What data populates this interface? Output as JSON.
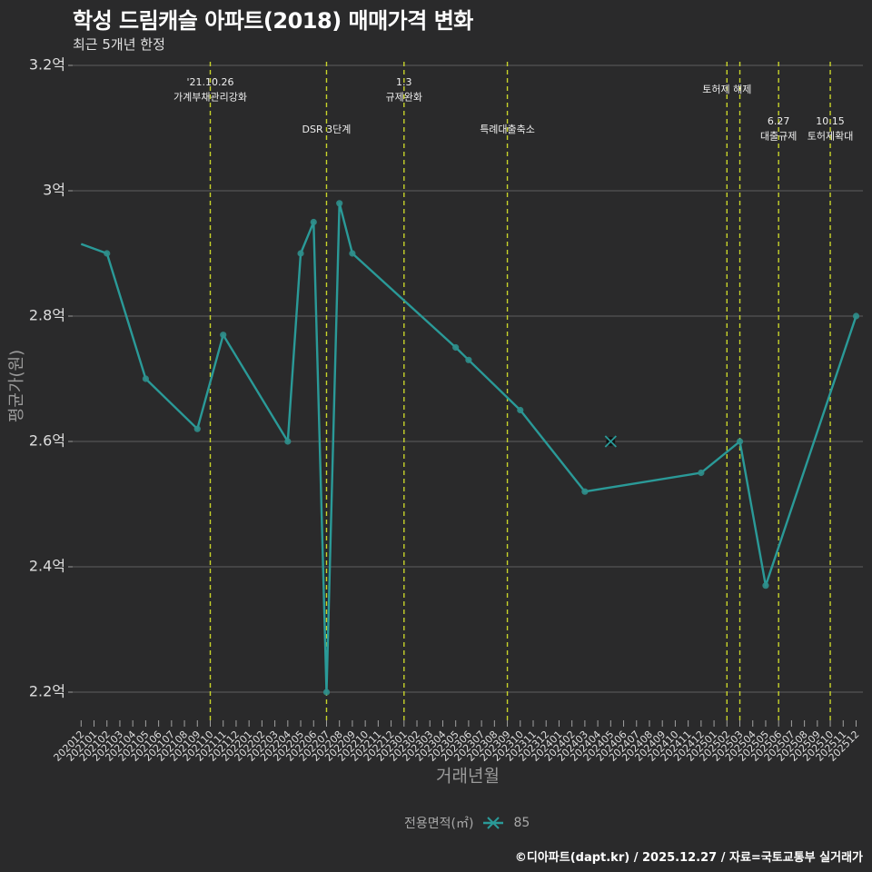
{
  "header": {
    "title": "학성 드림캐슬 아파트(2018) 매매가격 변화",
    "subtitle": "최근 5개년 한정"
  },
  "axes": {
    "x_title": "거래년월",
    "y_title": "평균가(원)"
  },
  "legend": {
    "title": "전용면적(㎡)",
    "items": [
      {
        "label": "85",
        "icon": "line-cross-icon",
        "color": "#2a9a98"
      }
    ]
  },
  "footer": {
    "credit": "©디아파트(dapt.kr) / 2025.12.27 / 자료=국토교통부 실거래가"
  },
  "colors": {
    "background": "#2a2a2b",
    "series": "#2a9a98",
    "marker": "#2f8f8c",
    "gridline": "#5f5f5f",
    "event_line": "#c8d42a",
    "axis_text": "#dedede",
    "axis_title": "#9a9a9a"
  },
  "chart_data": {
    "type": "line",
    "title": "학성 드림캐슬 아파트(2018) 매매가격 변화",
    "subtitle": "최근 5개년 한정",
    "xlabel": "거래년월",
    "ylabel": "평균가(원)",
    "unit": "억원",
    "ylim": [
      2.16,
      3.21
    ],
    "grid": true,
    "legend_position": "bottom",
    "yticks": [
      {
        "value": 3.2,
        "label": "3.2억"
      },
      {
        "value": 3.0,
        "label": "3억"
      },
      {
        "value": 2.8,
        "label": "2.8억"
      },
      {
        "value": 2.6,
        "label": "2.6억"
      },
      {
        "value": 2.4,
        "label": "2.4억"
      },
      {
        "value": 2.2,
        "label": "2.2억"
      }
    ],
    "categories": [
      "202012",
      "202101",
      "202102",
      "202103",
      "202104",
      "202105",
      "202106",
      "202107",
      "202108",
      "202109",
      "202110",
      "202111",
      "202112",
      "202201",
      "202202",
      "202203",
      "202204",
      "202205",
      "202206",
      "202207",
      "202208",
      "202209",
      "202210",
      "202211",
      "202212",
      "202301",
      "202302",
      "202303",
      "202304",
      "202305",
      "202306",
      "202307",
      "202308",
      "202309",
      "202310",
      "202311",
      "202312",
      "202401",
      "202402",
      "202403",
      "202404",
      "202405",
      "202406",
      "202407",
      "202408",
      "202409",
      "202410",
      "202411",
      "202412",
      "202501",
      "202502",
      "202503",
      "202504",
      "202505",
      "202506",
      "202507",
      "202508",
      "202509",
      "202510",
      "202511",
      "202512"
    ],
    "series": [
      {
        "name": "85",
        "legend_title": "전용면적(㎡)",
        "points": [
          {
            "x": "202012",
            "y": 2.915,
            "marker": false
          },
          {
            "x": "202102",
            "y": 2.9
          },
          {
            "x": "202105",
            "y": 2.7
          },
          {
            "x": "202109",
            "y": 2.62
          },
          {
            "x": "202111",
            "y": 2.77
          },
          {
            "x": "202204",
            "y": 2.6
          },
          {
            "x": "202205",
            "y": 2.9
          },
          {
            "x": "202206",
            "y": 2.95
          },
          {
            "x": "202207",
            "y": 2.2
          },
          {
            "x": "202208",
            "y": 2.98
          },
          {
            "x": "202209",
            "y": 2.9
          },
          {
            "x": "202305",
            "y": 2.75
          },
          {
            "x": "202306",
            "y": 2.73
          },
          {
            "x": "202310",
            "y": 2.65
          },
          {
            "x": "202403",
            "y": 2.52
          },
          {
            "x": "202412",
            "y": 2.55
          },
          {
            "x": "202503",
            "y": 2.6
          },
          {
            "x": "202505",
            "y": 2.37
          },
          {
            "x": "202512",
            "y": 2.8
          }
        ],
        "cross_markers": [
          {
            "x": "202405",
            "y": 2.6
          }
        ]
      }
    ],
    "events": [
      {
        "x": "202110",
        "tier": "a",
        "lines": [
          "'21.10.26",
          "가계부채관리강화"
        ]
      },
      {
        "x": "202207",
        "tier": "c",
        "lines": [
          "DSR 3단계"
        ]
      },
      {
        "x": "202301",
        "tier": "a",
        "lines": [
          "1.3",
          "규제완화"
        ]
      },
      {
        "x": "202309",
        "tier": "c",
        "lines": [
          "특례대출축소"
        ]
      },
      {
        "x": "202502",
        "tier": "b",
        "lines": [
          "토허제 해제"
        ]
      },
      {
        "x": "202503",
        "tier": "b",
        "lines": []
      },
      {
        "x": "202506",
        "tier": "d",
        "lines": [
          "6.27",
          "대출규제"
        ]
      },
      {
        "x": "202510",
        "tier": "d",
        "lines": [
          "10.15",
          "토허제확대"
        ]
      }
    ]
  }
}
